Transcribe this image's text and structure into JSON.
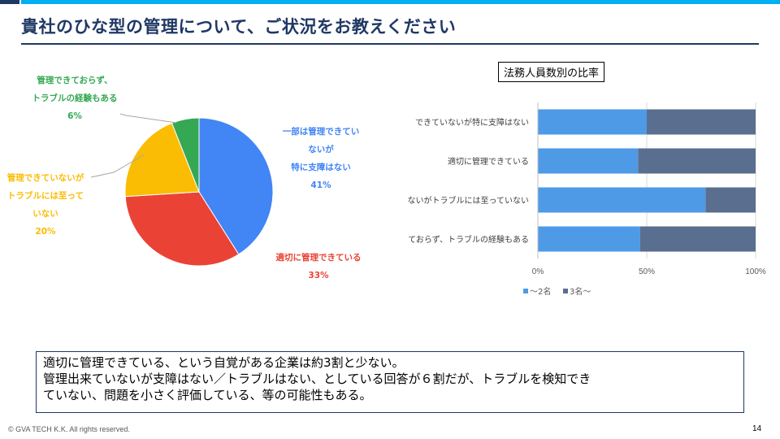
{
  "slide": {
    "title": "貴社のひな型の管理について、ご状況をお教えください",
    "summary_line1": "適切に管理できている、という自覚がある企業は約3割と少ない。",
    "summary_line2": "管理出来ていないが支障はない／トラブルはない、としている回答が６割だが、トラブルを検知でき",
    "summary_line3": "ていない、問題を小さく評価している、等の可能性もある。",
    "footer": "© GVA TECH  K.K.  All rights reserved.",
    "page_number": "14"
  },
  "chart_data": [
    {
      "type": "pie",
      "slices": [
        {
          "label_lines": [
            "一部は管理できてい",
            "ないが",
            "特に支障はない"
          ],
          "percent_label": "41%",
          "value": 41,
          "color": "#4285f4"
        },
        {
          "label_lines": [
            "適切に管理できている"
          ],
          "percent_label": "33%",
          "value": 33,
          "color": "#ea4335"
        },
        {
          "label_lines": [
            "管理できていないが",
            "トラブルには至って",
            "いない"
          ],
          "percent_label": "20%",
          "value": 20,
          "color": "#fbbc04"
        },
        {
          "label_lines": [
            "管理できておらず、",
            "トラブルの経験もある"
          ],
          "percent_label": "6%",
          "value": 6,
          "color": "#34a853"
        }
      ]
    },
    {
      "type": "bar",
      "orientation": "horizontal",
      "stacked": "percent",
      "title": "法務人員数別の比率",
      "categories": [
        "できていないが特に支障はない",
        "適切に管理できている",
        "ないがトラブルには至っていない",
        "ておらず、トラブルの経験もある"
      ],
      "series": [
        {
          "name": "～2名",
          "values": [
            50,
            46,
            77,
            47
          ],
          "color": "#4e9ae6"
        },
        {
          "name": "3名～",
          "values": [
            50,
            54,
            23,
            53
          ],
          "color": "#5a6f8f"
        }
      ],
      "x_ticks": [
        "0%",
        "50%",
        "100%"
      ],
      "xlim": [
        0,
        100
      ],
      "legend_position": "bottom"
    }
  ]
}
